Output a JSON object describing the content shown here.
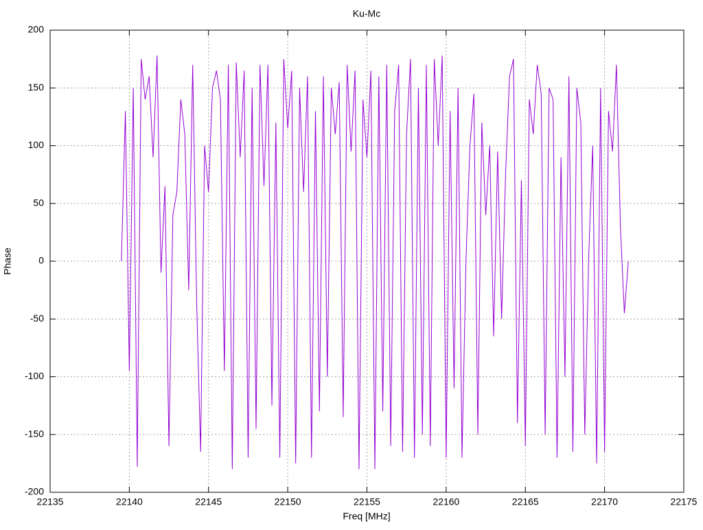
{
  "chart_data": {
    "type": "line",
    "title": "Ku-Mc",
    "xlabel": "Freq [MHz]",
    "ylabel": "Phase",
    "xlim": [
      22135,
      22175
    ],
    "xticks": [
      22135,
      22140,
      22145,
      22150,
      22155,
      22160,
      22165,
      22170,
      22175
    ],
    "ylim": [
      -200,
      200
    ],
    "yticks": [
      -200,
      -150,
      -100,
      -50,
      0,
      50,
      100,
      150,
      200
    ],
    "grid": true,
    "series": [
      {
        "color": "#9400d3",
        "x": [
          22139.5,
          22139.75,
          22140,
          22140.25,
          22140.5,
          22140.75,
          22141,
          22141.25,
          22141.5,
          22141.75,
          22142,
          22142.25,
          22142.5,
          22142.75,
          22143,
          22143.25,
          22143.5,
          22143.75,
          22144,
          22144.25,
          22144.5,
          22144.75,
          22145,
          22145.25,
          22145.5,
          22145.75,
          22146,
          22146.25,
          22146.5,
          22146.75,
          22147,
          22147.25,
          22147.5,
          22147.75,
          22148,
          22148.25,
          22148.5,
          22148.75,
          22149,
          22149.25,
          22149.5,
          22149.75,
          22150,
          22150.25,
          22150.5,
          22150.75,
          22151,
          22151.25,
          22151.5,
          22151.75,
          22152,
          22152.25,
          22152.5,
          22152.75,
          22153,
          22153.25,
          22153.5,
          22153.75,
          22154,
          22154.25,
          22154.5,
          22154.75,
          22155,
          22155.25,
          22155.5,
          22155.75,
          22156,
          22156.25,
          22156.5,
          22156.75,
          22157,
          22157.25,
          22157.5,
          22157.75,
          22158,
          22158.25,
          22158.5,
          22158.75,
          22159,
          22159.25,
          22159.5,
          22159.75,
          22160,
          22160.25,
          22160.5,
          22160.75,
          22161,
          22161.25,
          22161.5,
          22161.75,
          22162,
          22162.25,
          22162.5,
          22162.75,
          22163,
          22163.25,
          22163.5,
          22163.75,
          22164,
          22164.25,
          22164.5,
          22164.75,
          22165,
          22165.25,
          22165.5,
          22165.75,
          22166,
          22166.25,
          22166.5,
          22166.75,
          22167,
          22167.25,
          22167.5,
          22167.75,
          22168,
          22168.25,
          22168.5,
          22168.75,
          22169,
          22169.25,
          22169.5,
          22169.75,
          22170,
          22170.25,
          22170.5,
          22170.75,
          22171,
          22171.25,
          22171.5
        ],
        "values": [
          0,
          130,
          -95,
          150,
          -178,
          175,
          140,
          160,
          90,
          178,
          -10,
          65,
          -160,
          40,
          60,
          140,
          110,
          -25,
          170,
          -35,
          -165,
          100,
          60,
          150,
          165,
          140,
          -95,
          170,
          -180,
          172,
          90,
          165,
          -170,
          150,
          -145,
          170,
          65,
          170,
          -125,
          120,
          -170,
          175,
          115,
          165,
          -175,
          150,
          60,
          160,
          -170,
          130,
          -130,
          160,
          -100,
          150,
          110,
          155,
          -135,
          170,
          95,
          165,
          -180,
          140,
          90,
          165,
          -180,
          160,
          -130,
          170,
          -160,
          130,
          170,
          -165,
          110,
          175,
          -170,
          150,
          -150,
          170,
          -160,
          175,
          100,
          178,
          -170,
          130,
          -110,
          150,
          -170,
          0,
          100,
          145,
          -150,
          120,
          40,
          100,
          -65,
          95,
          -50,
          75,
          160,
          175,
          -140,
          70,
          -160,
          140,
          110,
          170,
          145,
          -150,
          150,
          140,
          -170,
          90,
          -100,
          160,
          -165,
          150,
          120,
          -150,
          5,
          100,
          -175,
          150,
          -165,
          130,
          95,
          170,
          30,
          -45,
          0
        ]
      }
    ]
  }
}
